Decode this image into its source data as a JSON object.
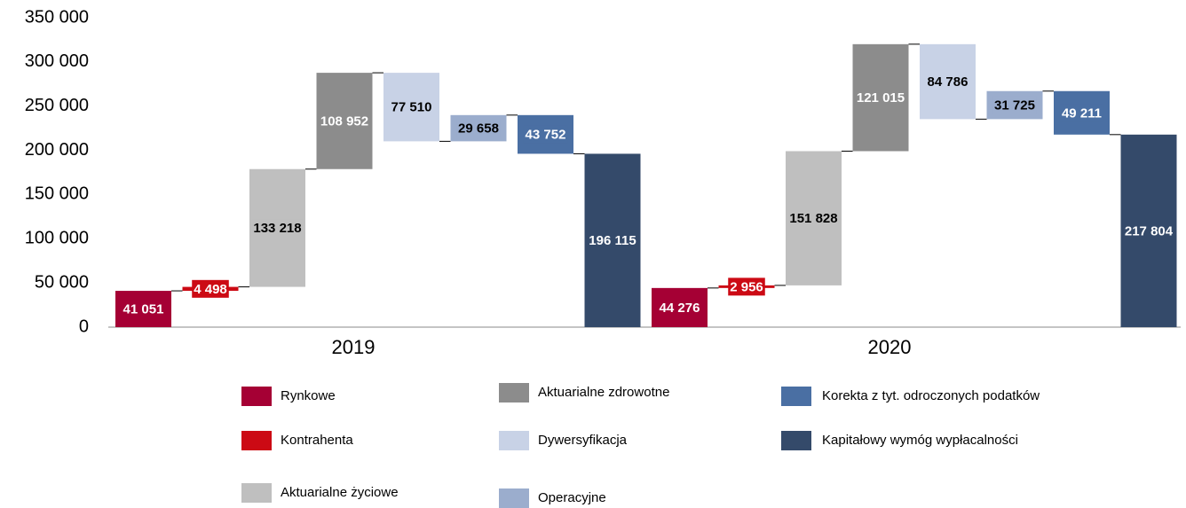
{
  "chart_data": {
    "type": "waterfall",
    "groups": [
      "2019",
      "2020"
    ],
    "series": [
      {
        "name": "Rynkowe",
        "color": "#a50034",
        "values": [
          41051,
          44276
        ],
        "value_labels": [
          "41 051",
          "44 276"
        ]
      },
      {
        "name": "Kontrahenta",
        "color": "#cc0a14",
        "values": [
          4498,
          2956
        ],
        "value_labels": [
          "4 498",
          "2 956"
        ]
      },
      {
        "name": "Aktuarialne życiowe",
        "color": "#bfbfbf",
        "values": [
          133218,
          151828
        ],
        "value_labels": [
          "133 218",
          "151 828"
        ]
      },
      {
        "name": "Aktuarialne zdrowotne",
        "color": "#8c8c8c",
        "values": [
          108952,
          121015
        ],
        "value_labels": [
          "108 952",
          "121 015"
        ]
      },
      {
        "name": "Dywersyfikacja",
        "color": "#c8d2e6",
        "values": [
          -77510,
          -84786
        ],
        "value_labels": [
          "77 510",
          "84 786"
        ]
      },
      {
        "name": "Operacyjne",
        "color": "#9badcd",
        "values": [
          29658,
          31725
        ],
        "value_labels": [
          "29 658",
          "31 725"
        ]
      },
      {
        "name": "Korekta z tyt. odroczonych podatków",
        "color": "#4a6fa3",
        "values": [
          -43752,
          -49211
        ],
        "value_labels": [
          "43 752",
          "49 211"
        ]
      },
      {
        "name": "Kapitałowy wymóg wypłacalności",
        "color": "#344a6a",
        "values": [
          196115,
          217804
        ],
        "value_labels": [
          "196 115",
          "217 804"
        ]
      }
    ],
    "ylim": [
      0,
      350000
    ],
    "yticks": [
      {
        "value": 0,
        "label": "0"
      },
      {
        "value": 50000,
        "label": "50 000"
      },
      {
        "value": 100000,
        "label": "100 000"
      },
      {
        "value": 150000,
        "label": "150 000"
      },
      {
        "value": 200000,
        "label": "200 000"
      },
      {
        "value": 250000,
        "label": "250 000"
      },
      {
        "value": 300000,
        "label": "300 000"
      },
      {
        "value": 350000,
        "label": "350 000"
      }
    ]
  }
}
